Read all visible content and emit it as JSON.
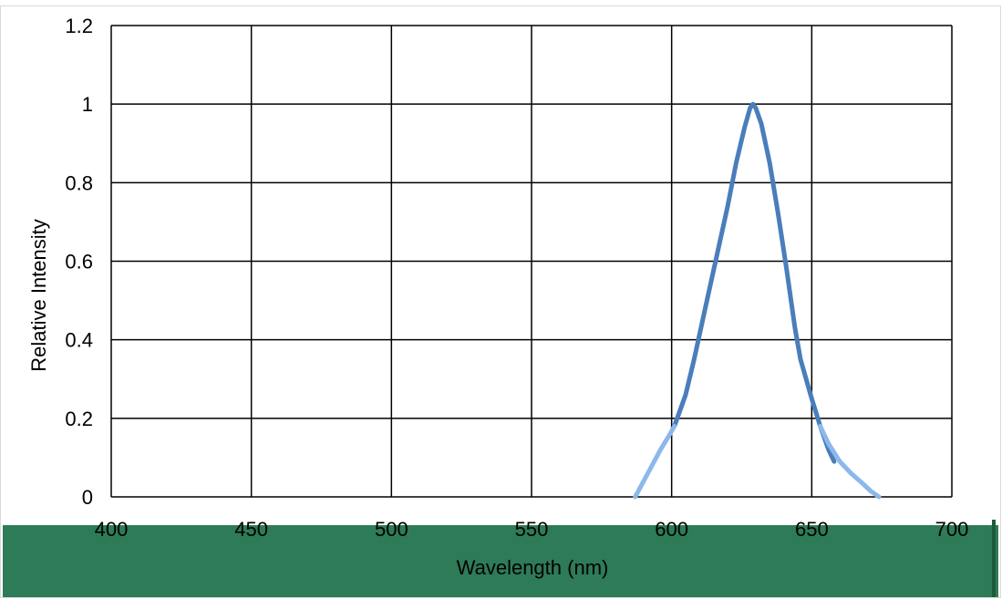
{
  "chart_data": {
    "type": "line",
    "title": "",
    "xlabel": "Wavelength (nm)",
    "ylabel": "Relative Intensity",
    "xlim": [
      400,
      700
    ],
    "ylim": [
      0,
      1.2
    ],
    "x_ticks": [
      400,
      450,
      500,
      550,
      600,
      650,
      700
    ],
    "x_tick_labels": [
      "400",
      "450",
      "500",
      "550",
      "600",
      "650",
      "700"
    ],
    "y_ticks": [
      0,
      0.2,
      0.4,
      0.6,
      0.8,
      1,
      1.2
    ],
    "y_tick_labels": [
      "0",
      "0.2",
      "0.4",
      "0.6",
      "0.8",
      "1",
      "1.2"
    ],
    "grid": true,
    "legend": "none",
    "series": [
      {
        "color": "#4a7ebb",
        "x": [
          601,
          605,
          608,
          612,
          616,
          620,
          623,
          626,
          628,
          629,
          630,
          632,
          635,
          638,
          641,
          644,
          646,
          648,
          650,
          653,
          656,
          658
        ],
        "y": [
          0.18,
          0.26,
          0.35,
          0.48,
          0.61,
          0.74,
          0.85,
          0.94,
          0.99,
          1.0,
          0.99,
          0.95,
          0.85,
          0.72,
          0.58,
          0.43,
          0.35,
          0.3,
          0.25,
          0.18,
          0.12,
          0.09
        ]
      },
      {
        "color": "#8cb8ec",
        "x": [
          587,
          590,
          593,
          596,
          599,
          601
        ],
        "y": [
          0.0,
          0.04,
          0.08,
          0.12,
          0.155,
          0.18
        ]
      },
      {
        "color": "#8cb8ec",
        "x": [
          653,
          656,
          660,
          664,
          668,
          671,
          674
        ],
        "y": [
          0.18,
          0.135,
          0.09,
          0.06,
          0.035,
          0.015,
          0.0
        ]
      }
    ]
  },
  "style": {
    "background": "#ffffff",
    "grid_color": "#000000",
    "footer_band_color": "#2e7b57",
    "footer_edge_color": "#1e5a3c"
  }
}
